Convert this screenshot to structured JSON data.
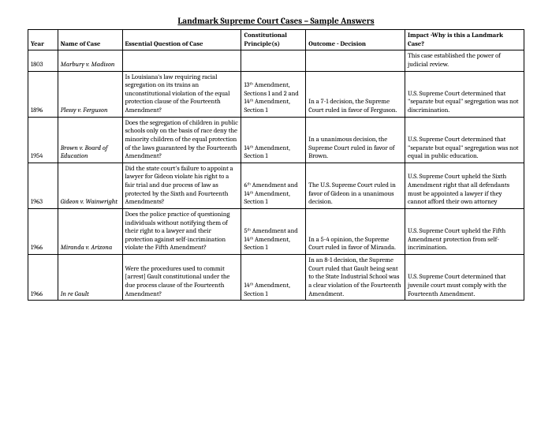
{
  "title": "Landmark Supreme Court Cases – Sample Answers",
  "headers": {
    "year": "Year",
    "name": "Name of Case",
    "question": "Essential Question of Case",
    "principle": "Constitutional Principle(s)",
    "outcome": "Outcome - Decision",
    "impact": "Impact -Why is this a Landmark Case?"
  },
  "rows": [
    {
      "year": "1803",
      "name": "Marbury v. Madison",
      "question": "",
      "principle": "",
      "outcome": "",
      "impact": "This case established the power of judicial review."
    },
    {
      "year": "1896",
      "name": "Plessy v. Ferguson",
      "question": "Is Louisiana's law requiring racial segregation on its trains an unconstitutional violation of the equal protection clause of the Fourteenth Amendment?",
      "principle": "13ᵗʰ Amendment, Sections 1 and 2 and 14ᵗʰ Amendment, Section 1",
      "outcome": "In a 7-1 decision, the Supreme Court ruled in favor of Ferguson.",
      "impact": "U.S. Supreme Court determined that \"separate but equal\" segregation was not discrimination."
    },
    {
      "year": "1954",
      "name": "Brown v. Board of Education",
      "question": "Does the segregation of children in public schools only on the basis of race deny the minority children of the equal protection of the laws guaranteed by the Fourteenth Amendment?",
      "principle": "14ᵗʰ Amendment, Section 1",
      "outcome": "In a unanimous decision, the Supreme Court ruled in favor of Brown.",
      "impact": "U.S. Supreme Court determined that \"separate but equal\" segregation was not equal in public education."
    },
    {
      "year": "1963",
      "name": "Gideon v. Wainwright",
      "question": "Did the state court's failure to appoint a lawyer for Gideon violate his right to a fair trial and due process of law as protected by the Sixth and Fourteenth Amendments?",
      "principle": "6ᵗʰ Amendment and 14ᵗʰ Amendment, Section 1",
      "outcome": "The U.S. Supreme Court ruled in favor of Gideon in a unanimous decision.",
      "impact": "U.S. Supreme Court upheld the Sixth Amendment right that all defendants must be appointed a lawyer if they cannot afford their own attorney"
    },
    {
      "year": "1966",
      "name": "Miranda v. Arizona",
      "question": "Does the police practice of questioning individuals without notifying them of their right to a lawyer and their protection against self-incrimination violate the Fifth Amendment?",
      "principle": "5ᵗʰ Amendment and 14ᵗʰ Amendment, Section 1",
      "outcome": "In a 5-4 opinion, the Supreme Court ruled in favor of Miranda.",
      "impact": "U.S. Supreme Court upheld the Fifth Amendment protection from self-incrimination."
    },
    {
      "year": "1966",
      "name": "In re Gault",
      "question": "Were the procedures used to commit [arrest] Gault constitutional under the due process clause of the Fourteenth Amendment?",
      "principle": "14ᵗʰ Amendment, Section 1",
      "outcome": "In an 8-1 decision, the Supreme Court ruled that Gault being sent to the State Industrial School was a clear violation of the Fourteenth Amendment.",
      "impact": "U.S. Supreme Court determined that juvenile court must comply with the Fourteenth Amendment."
    }
  ]
}
